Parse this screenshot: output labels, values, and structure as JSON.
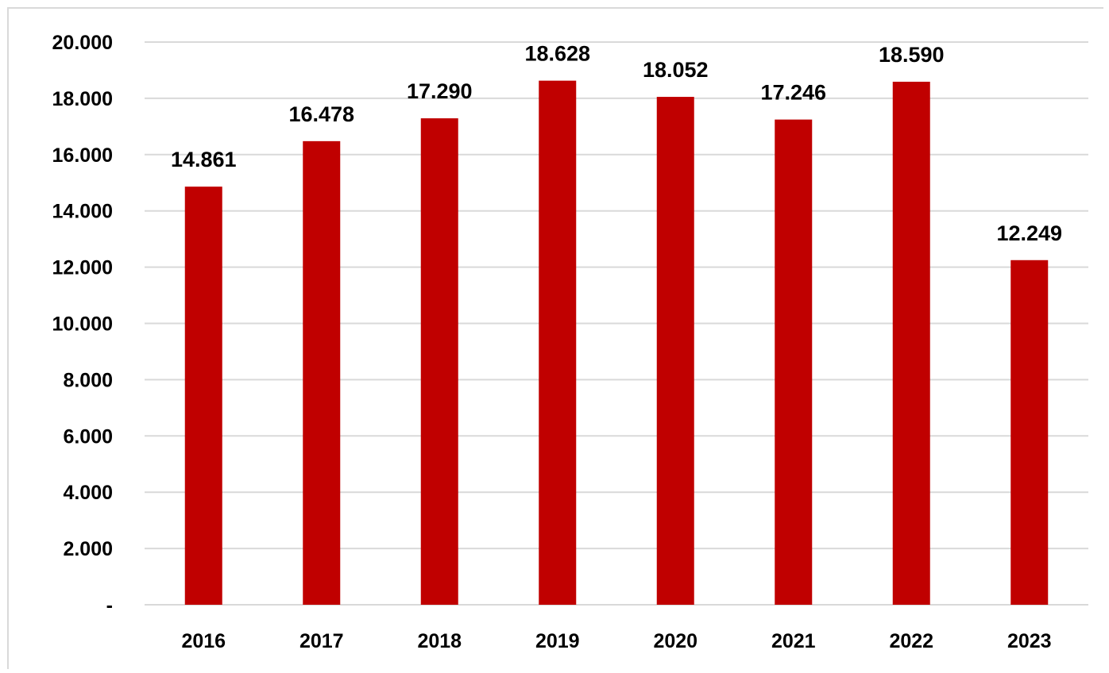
{
  "chart_data": {
    "type": "bar",
    "categories": [
      "2016",
      "2017",
      "2018",
      "2019",
      "2020",
      "2021",
      "2022",
      "2023"
    ],
    "values": [
      14861,
      16478,
      17290,
      18628,
      18052,
      17246,
      18590,
      12249
    ],
    "value_labels": [
      "14.861",
      "16.478",
      "17.290",
      "18.628",
      "18.052",
      "17.246",
      "18.590",
      "12.249"
    ],
    "ylim": [
      0,
      20000
    ],
    "yticks": [
      0,
      2000,
      4000,
      6000,
      8000,
      10000,
      12000,
      14000,
      16000,
      18000,
      20000
    ],
    "ytick_labels": [
      "-",
      "2.000",
      "4.000",
      "6.000",
      "8.000",
      "10.000",
      "12.000",
      "14.000",
      "16.000",
      "18.000",
      "20.000"
    ],
    "grid": true,
    "legend": "none",
    "title": "",
    "xlabel": "",
    "ylabel": "",
    "bar_color": "#c00000",
    "grid_color": "#d9d9d9"
  }
}
